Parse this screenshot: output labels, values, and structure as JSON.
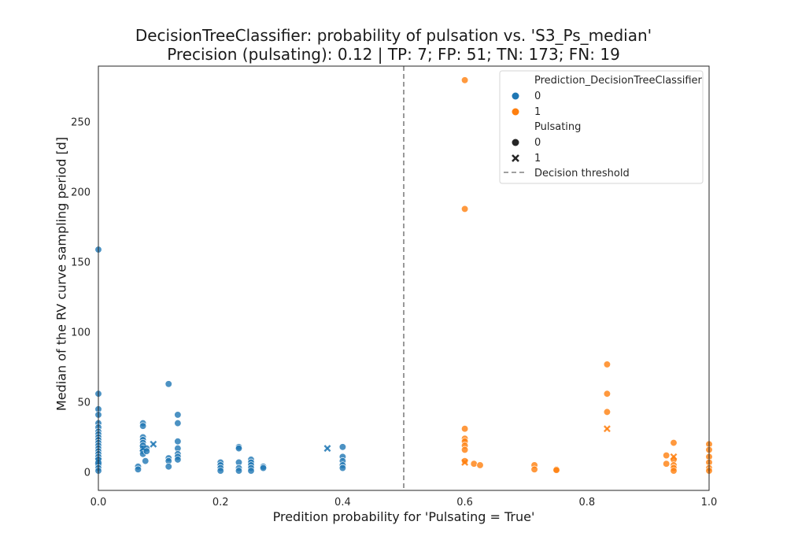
{
  "title_line1": "DecisionTreeClassifier: probability of pulsation vs. 'S3_Ps_median'",
  "title_line2": "Precision (pulsating): 0.12 | TP: 7; FP: 51; TN: 173; FN: 19",
  "chart_data": {
    "type": "scatter",
    "xlabel": "Predition probability for 'Pulsating = True'",
    "ylabel": "Median of the RV curve sampling period [d]",
    "xlim": [
      0,
      1
    ],
    "ylim": [
      -13,
      290
    ],
    "xticks": [
      "0.0",
      "0.2",
      "0.4",
      "0.6",
      "0.8",
      "1.0"
    ],
    "yticks": [
      "0",
      "50",
      "100",
      "150",
      "200",
      "250"
    ],
    "grid": false,
    "decision_threshold": 0.5,
    "legend": {
      "placement": "top-right",
      "hue_title": "Prediction_DecisionTreeClassifier",
      "hue_entries": [
        "0",
        "1"
      ],
      "style_title": "Pulsating",
      "style_entries": [
        "0",
        "1"
      ],
      "threshold_label": "Decision threshold"
    },
    "colors": {
      "prediction_0": "#1f77b4",
      "prediction_1": "#ff7f0e",
      "threshold": "#808080"
    },
    "series": [
      {
        "name": "0",
        "role": "prediction_0 / pulsating_0",
        "points": [
          [
            0,
            159
          ],
          [
            0,
            56
          ],
          [
            0,
            45
          ],
          [
            0,
            41
          ],
          [
            0,
            35
          ],
          [
            0,
            32
          ],
          [
            0,
            29
          ],
          [
            0,
            27
          ],
          [
            0,
            25
          ],
          [
            0,
            23
          ],
          [
            0,
            21
          ],
          [
            0,
            19
          ],
          [
            0,
            17
          ],
          [
            0,
            15
          ],
          [
            0,
            13
          ],
          [
            0,
            11
          ],
          [
            0,
            9
          ],
          [
            0,
            7
          ],
          [
            0,
            5
          ],
          [
            0,
            3
          ],
          [
            0,
            1
          ],
          [
            0.065,
            4
          ],
          [
            0.065,
            2
          ],
          [
            0.073,
            35
          ],
          [
            0.073,
            33
          ],
          [
            0.073,
            25
          ],
          [
            0.073,
            23
          ],
          [
            0.073,
            21
          ],
          [
            0.073,
            19
          ],
          [
            0.073,
            17
          ],
          [
            0.073,
            15
          ],
          [
            0.073,
            13
          ],
          [
            0.077,
            8
          ],
          [
            0.079,
            17
          ],
          [
            0.079,
            15
          ],
          [
            0.115,
            63
          ],
          [
            0.115,
            10
          ],
          [
            0.115,
            8
          ],
          [
            0.115,
            4
          ],
          [
            0.13,
            41
          ],
          [
            0.13,
            35
          ],
          [
            0.13,
            22
          ],
          [
            0.13,
            17
          ],
          [
            0.13,
            13
          ],
          [
            0.13,
            11
          ],
          [
            0.13,
            9
          ],
          [
            0.2,
            7
          ],
          [
            0.2,
            5
          ],
          [
            0.2,
            3
          ],
          [
            0.2,
            1
          ],
          [
            0.23,
            18
          ],
          [
            0.23,
            17
          ],
          [
            0.23,
            7
          ],
          [
            0.23,
            3
          ],
          [
            0.23,
            1
          ],
          [
            0.25,
            9
          ],
          [
            0.25,
            7
          ],
          [
            0.25,
            5
          ],
          [
            0.25,
            3
          ],
          [
            0.25,
            1
          ],
          [
            0.27,
            4
          ],
          [
            0.27,
            3
          ],
          [
            0.4,
            18
          ],
          [
            0.4,
            11
          ],
          [
            0.4,
            8
          ],
          [
            0.4,
            5
          ],
          [
            0.4,
            3
          ]
        ]
      },
      {
        "name": "1",
        "role": "prediction_0 / pulsating_1",
        "points": [
          [
            0.09,
            20
          ],
          [
            0.375,
            17
          ],
          [
            0,
            8
          ],
          [
            0.073,
            17
          ]
        ]
      },
      {
        "name": "0",
        "role": "prediction_1 / pulsating_0",
        "points": [
          [
            0.6,
            280
          ],
          [
            0.6,
            188
          ],
          [
            0.6,
            31
          ],
          [
            0.6,
            24
          ],
          [
            0.6,
            22
          ],
          [
            0.6,
            19
          ],
          [
            0.6,
            16
          ],
          [
            0.6,
            8
          ],
          [
            0.615,
            6
          ],
          [
            0.625,
            5
          ],
          [
            0.714,
            5
          ],
          [
            0.714,
            2
          ],
          [
            0.75,
            2
          ],
          [
            0.75,
            1.5
          ],
          [
            0.833,
            77
          ],
          [
            0.833,
            56
          ],
          [
            0.833,
            43
          ],
          [
            0.93,
            12
          ],
          [
            0.93,
            6
          ],
          [
            0.942,
            21
          ],
          [
            0.942,
            9
          ],
          [
            0.942,
            5
          ],
          [
            0.942,
            3
          ],
          [
            0.942,
            1
          ],
          [
            1,
            20
          ],
          [
            1,
            16
          ],
          [
            1,
            11
          ],
          [
            1,
            7
          ],
          [
            1,
            3
          ],
          [
            1,
            1
          ]
        ]
      },
      {
        "name": "1",
        "role": "prediction_1 / pulsating_1",
        "points": [
          [
            0.6,
            7
          ],
          [
            0.833,
            31
          ],
          [
            0.942,
            11
          ]
        ]
      }
    ]
  }
}
